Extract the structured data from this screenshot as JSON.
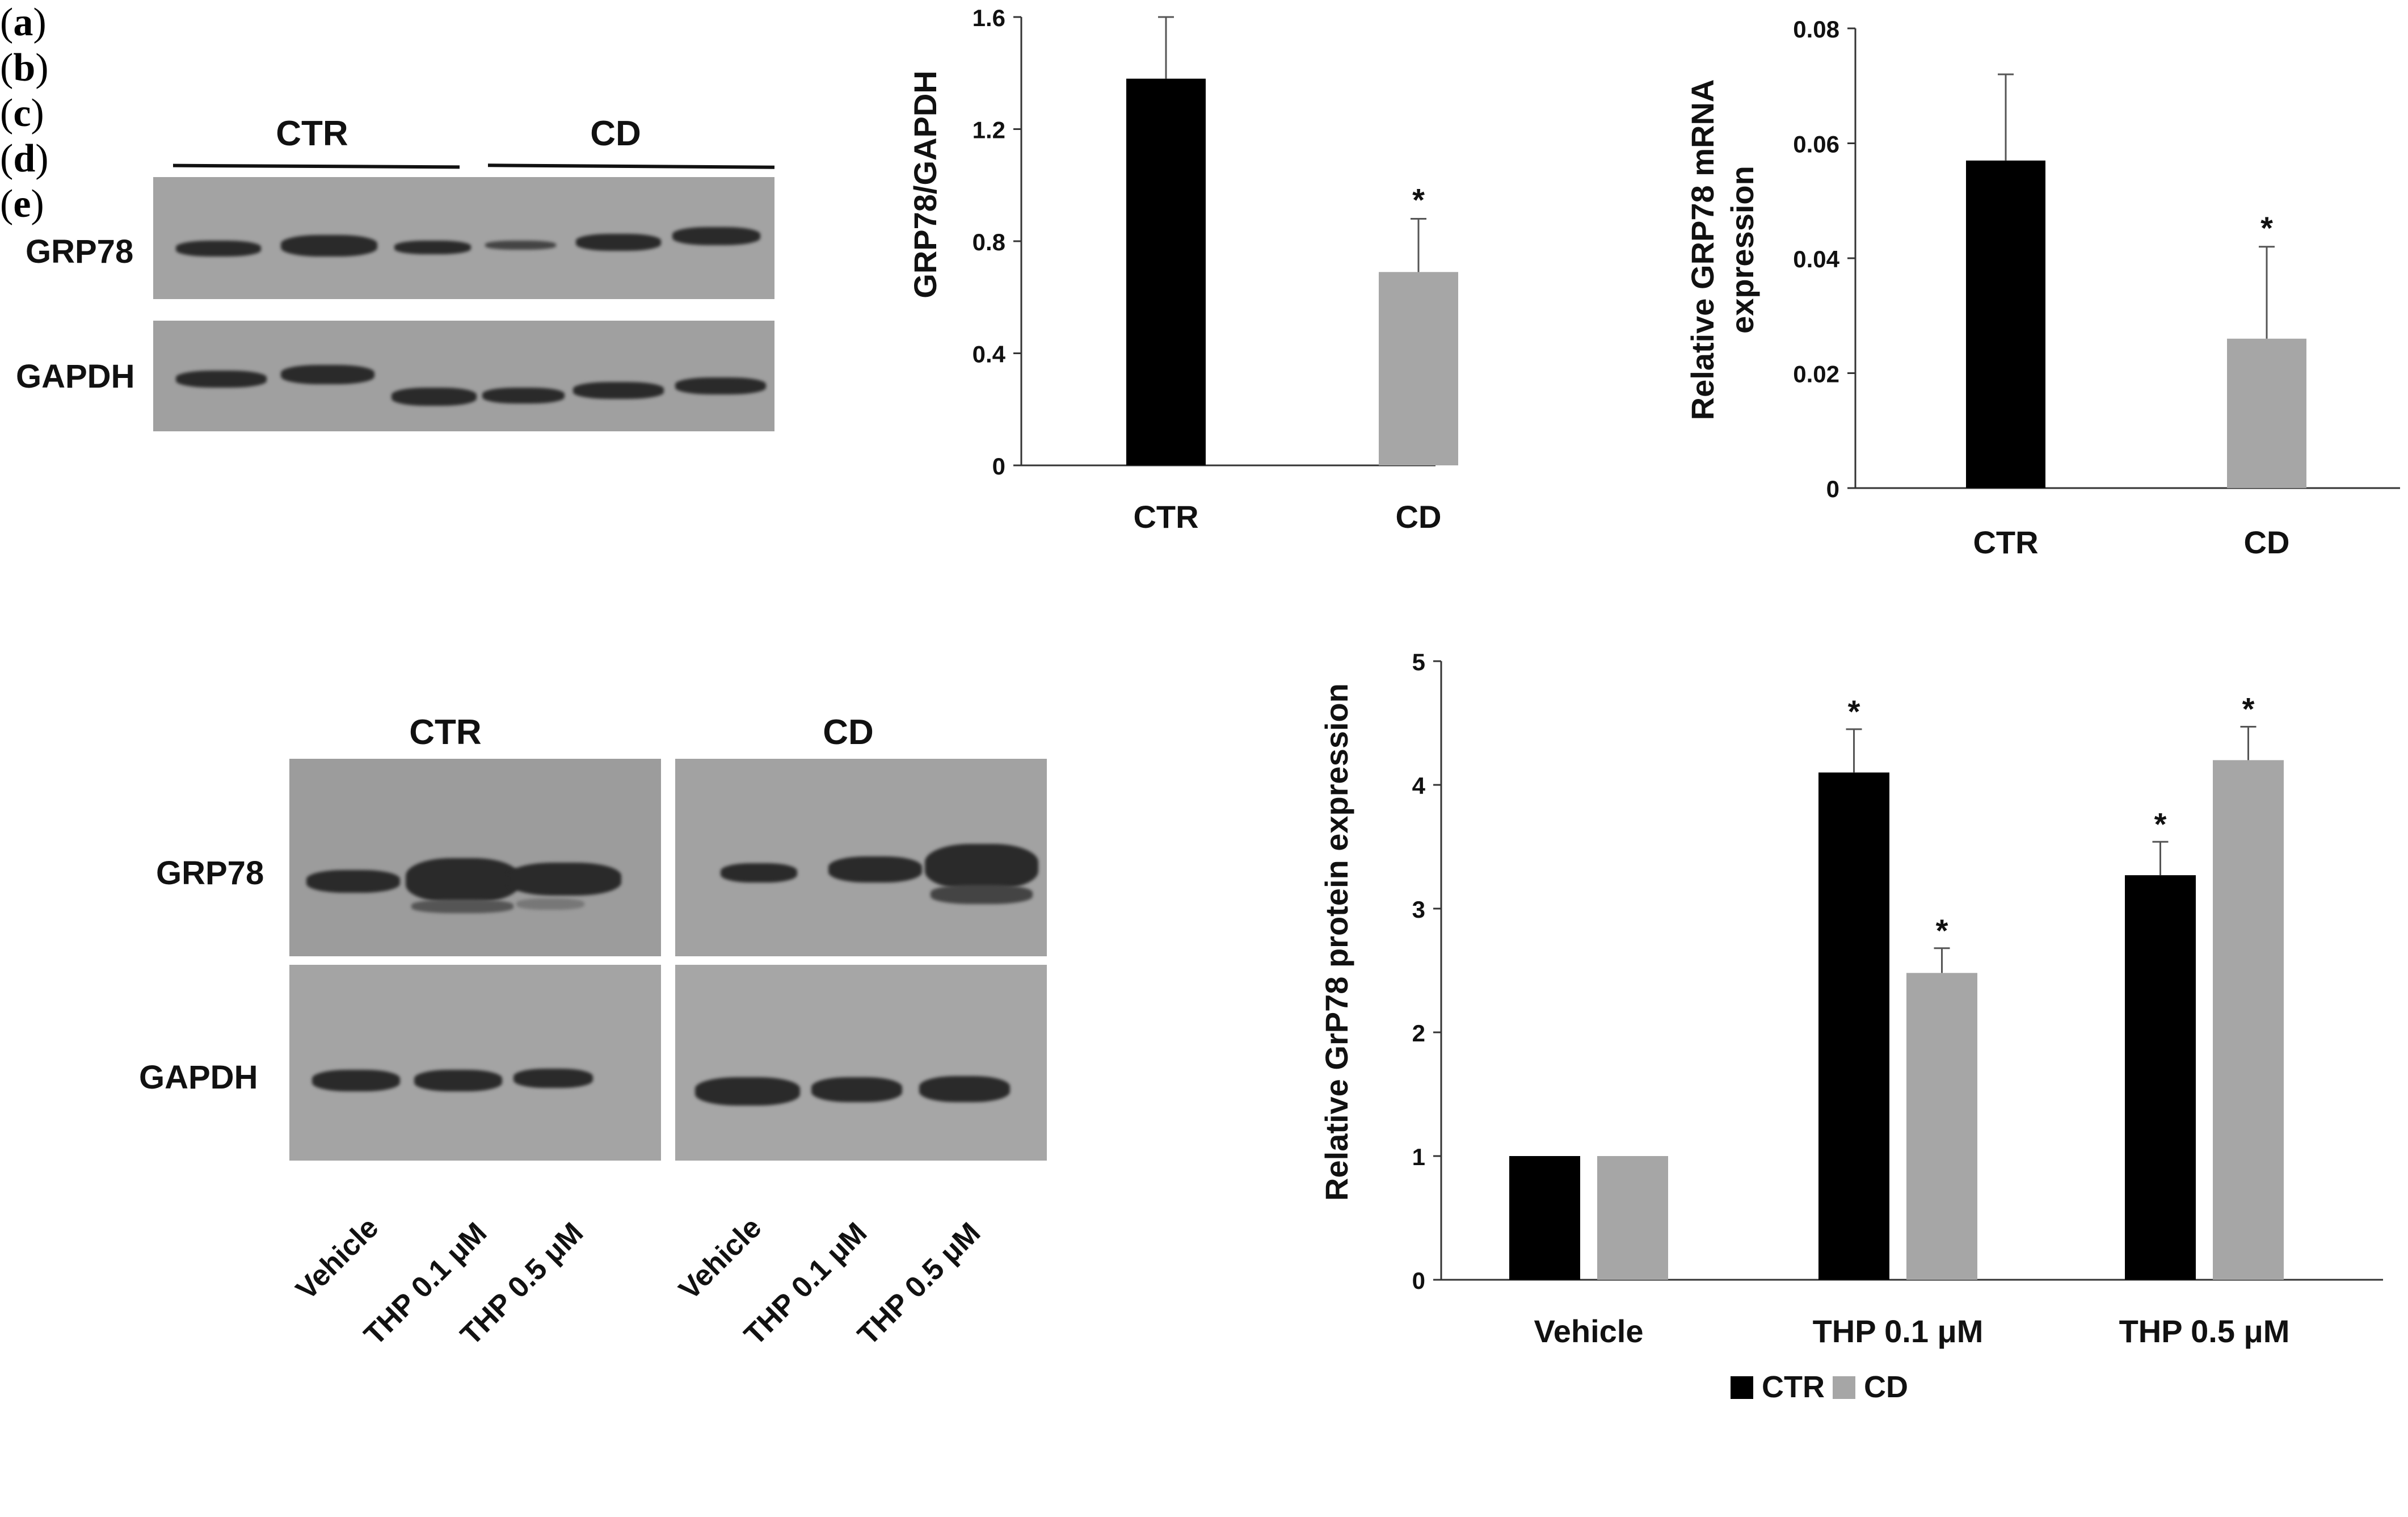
{
  "panel_labels": [
    "a",
    "b",
    "c",
    "d",
    "e"
  ],
  "panel_a": {
    "groups": [
      "CTR",
      "CD"
    ],
    "rows": [
      "GRP78",
      "GAPDH"
    ]
  },
  "panel_d": {
    "groups": [
      "CTR",
      "CD"
    ],
    "rows": [
      "GRP78",
      "GAPDH"
    ],
    "lanes": [
      "Vehicle",
      "THP 0.1 μM",
      "THP 0.5 μM"
    ]
  },
  "chart_data": [
    {
      "id": "b",
      "type": "bar",
      "categories": [
        "CTR",
        "CD"
      ],
      "values": [
        1.38,
        0.69
      ],
      "errors": [
        0.22,
        0.19
      ],
      "colors": [
        "#000000",
        "#a6a6a6"
      ],
      "significance": [
        "",
        "*"
      ],
      "title": "",
      "xlabel": "",
      "ylabel": "GRP78/GAPDH",
      "ylim": [
        0,
        1.6
      ],
      "yticks": [
        "0",
        "0.4",
        "0.8",
        "1.2",
        "1.6"
      ]
    },
    {
      "id": "c",
      "type": "bar",
      "categories": [
        "CTR",
        "CD"
      ],
      "values": [
        0.057,
        0.026
      ],
      "errors": [
        0.015,
        0.016
      ],
      "colors": [
        "#000000",
        "#a6a6a6"
      ],
      "significance": [
        "",
        "*"
      ],
      "title": "",
      "xlabel": "",
      "ylabel": [
        "Relative GRP78 mRNA",
        "expression"
      ],
      "ylim": [
        0,
        0.08
      ],
      "yticks": [
        "0",
        "0.02",
        "0.04",
        "0.06",
        "0.08"
      ]
    },
    {
      "id": "e",
      "type": "bar",
      "categories": [
        "Vehicle",
        "THP 0.1 μM",
        "THP 0.5 μM"
      ],
      "series": [
        {
          "name": "CTR",
          "color": "#000000",
          "values": [
            1.0,
            4.1,
            3.27
          ],
          "errors": [
            0,
            0.35,
            0.27
          ],
          "significance": [
            "",
            "*",
            "*"
          ]
        },
        {
          "name": "CD",
          "color": "#a6a6a6",
          "values": [
            1.0,
            2.48,
            4.2
          ],
          "errors": [
            0,
            0.2,
            0.27
          ],
          "significance": [
            "",
            "*",
            "*"
          ]
        }
      ],
      "title": "",
      "xlabel": "",
      "ylabel": "Relative GrP78 protein expression",
      "ylim": [
        0,
        5
      ],
      "yticks": [
        "0",
        "1",
        "2",
        "3",
        "4",
        "5"
      ],
      "legend": "bottom-center"
    }
  ]
}
